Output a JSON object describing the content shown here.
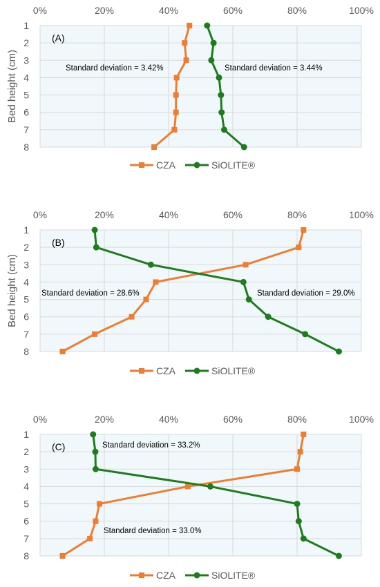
{
  "figure": {
    "chart_data": [
      {
        "type": "line",
        "panel_label": "(A)",
        "ylabel": "Bed height (cm)",
        "x_ticks": [
          "0%",
          "20%",
          "40%",
          "60%",
          "80%",
          "100%"
        ],
        "y_ticks": [
          "1",
          "2",
          "3",
          "4",
          "5",
          "6",
          "7",
          "8"
        ],
        "xlim": [
          0,
          100
        ],
        "ylim": [
          1,
          8
        ],
        "y_inverted": true,
        "grid": true,
        "legend": "bottom",
        "series": [
          {
            "name": "CZA",
            "color": "#ED7D31",
            "marker": "square",
            "x": [
              46.5,
              45,
              45.5,
              42.5,
              42.3,
              42.3,
              41.8,
              35.5
            ],
            "y": [
              1,
              2,
              3,
              4,
              5,
              6,
              7,
              8
            ]
          },
          {
            "name": "SiOLITE®",
            "color": "#1E7B1E",
            "marker": "circle",
            "x": [
              52,
              54,
              53.3,
              55.7,
              56.3,
              56.5,
              57.3,
              63.5
            ],
            "y": [
              1,
              2,
              3,
              4,
              5,
              6,
              7,
              8
            ]
          }
        ],
        "annotations": [
          {
            "text": "Standard deviation = 3.42%"
          },
          {
            "text": "Standard deviation = 3.44%"
          }
        ]
      },
      {
        "type": "line",
        "panel_label": "(B)",
        "ylabel": "Bed height (cm)",
        "x_ticks": [
          "0%",
          "20%",
          "40%",
          "60%",
          "80%",
          "100%"
        ],
        "y_ticks": [
          "1",
          "2",
          "3",
          "4",
          "5",
          "6",
          "7",
          "8"
        ],
        "xlim": [
          0,
          100
        ],
        "ylim": [
          1,
          8
        ],
        "y_inverted": true,
        "grid": true,
        "legend": "bottom",
        "series": [
          {
            "name": "CZA",
            "color": "#ED7D31",
            "marker": "square",
            "x": [
              82,
              80.5,
              64,
              36,
              33,
              28.5,
              17,
              7
            ],
            "y": [
              1,
              2,
              3,
              4,
              5,
              6,
              7,
              8
            ]
          },
          {
            "name": "SiOLITE®",
            "color": "#1E7B1E",
            "marker": "circle",
            "x": [
              17,
              17.5,
              34.5,
              63.3,
              65,
              71,
              82.5,
              93
            ],
            "y": [
              1,
              2,
              3,
              4,
              5,
              6,
              7,
              8
            ]
          }
        ],
        "annotations": [
          {
            "text": "Standard deviation = 28.6%"
          },
          {
            "text": "Standard deviation = 29.0%"
          }
        ]
      },
      {
        "type": "line",
        "panel_label": "(C)",
        "ylabel": "",
        "x_ticks": [
          "0%",
          "20%",
          "40%",
          "60%",
          "80%",
          "100%"
        ],
        "y_ticks": [
          "1",
          "2",
          "3",
          "4",
          "5",
          "6",
          "7",
          "8"
        ],
        "xlim": [
          0,
          100
        ],
        "ylim": [
          1,
          8
        ],
        "y_inverted": true,
        "grid": true,
        "legend": "bottom",
        "series": [
          {
            "name": "CZA",
            "color": "#ED7D31",
            "marker": "square",
            "x": [
              82,
              81,
              80,
              46,
              18.5,
              17.3,
              15.5,
              7
            ],
            "y": [
              1,
              2,
              3,
              4,
              5,
              6,
              7,
              8
            ]
          },
          {
            "name": "SiOLITE®",
            "color": "#1E7B1E",
            "marker": "circle",
            "x": [
              16.5,
              17.2,
              17.3,
              53,
              80,
              80.5,
              82,
              93
            ],
            "y": [
              1,
              2,
              3,
              4,
              5,
              6,
              7,
              8
            ]
          }
        ],
        "annotations": [
          {
            "text": "Standard deviation = 33.2%"
          },
          {
            "text": "Standard deviation = 33.0%"
          }
        ]
      }
    ]
  }
}
